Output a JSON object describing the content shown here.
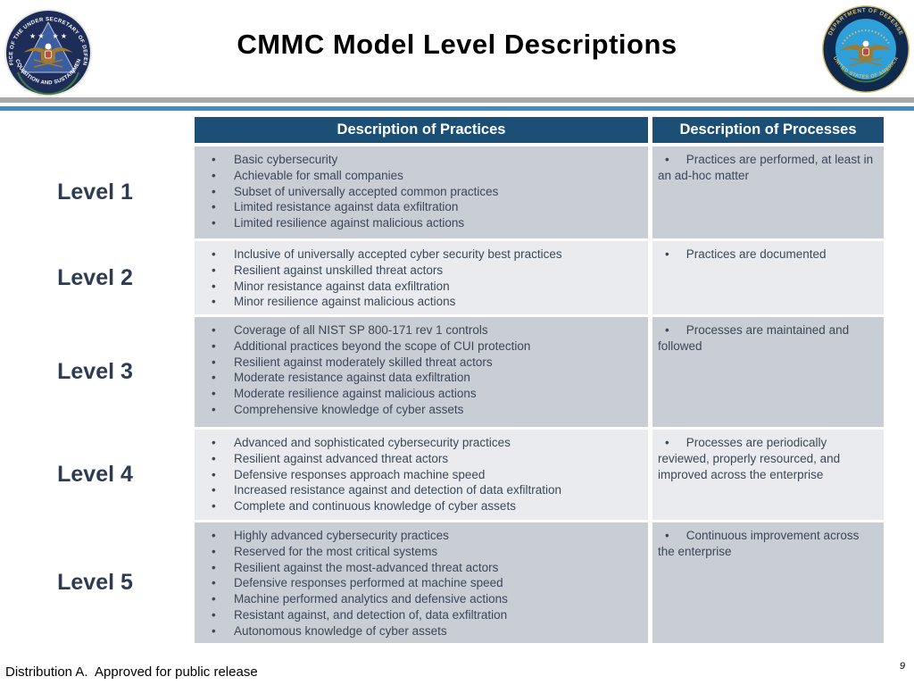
{
  "slide": {
    "title": "CMMC Model Level Descriptions",
    "footer": "Distribution A.  Approved for public release",
    "page_number": "9"
  },
  "seals": {
    "left": {
      "top_text": "OFFICE OF THE UNDER SECRETARY OF DEFENSE",
      "bottom_text": "ACQUISITION AND SUSTAINMENT"
    },
    "right": {
      "top_text": "DEPARTMENT OF DEFENSE",
      "bottom_text": "UNITED STATES OF AMERICA"
    }
  },
  "table": {
    "columns": [
      "Description of Practices",
      "Description of Processes"
    ],
    "rows": [
      {
        "level": "Level 1",
        "practices": [
          "Basic cybersecurity",
          "Achievable for small companies",
          "Subset of universally accepted common practices",
          "Limited resistance against data exfiltration",
          "Limited resilience against malicious actions"
        ],
        "processes": [
          "Practices are performed, at least in an ad-hoc matter"
        ]
      },
      {
        "level": "Level 2",
        "practices": [
          "Inclusive of universally accepted cyber security best practices",
          "Resilient against unskilled threat actors",
          "Minor resistance against data exfiltration",
          "Minor resilience against malicious actions"
        ],
        "processes": [
          "Practices are documented"
        ]
      },
      {
        "level": "Level 3",
        "practices": [
          "Coverage of all NIST SP 800-171 rev 1 controls",
          "Additional practices beyond the scope of CUI protection",
          "Resilient against moderately skilled threat actors",
          "Moderate resistance against data exfiltration",
          "Moderate resilience against malicious actions",
          "Comprehensive knowledge of cyber assets"
        ],
        "processes": [
          "Processes are maintained and followed"
        ]
      },
      {
        "level": "Level 4",
        "practices": [
          "Advanced and sophisticated cybersecurity practices",
          "Resilient against advanced threat actors",
          "Defensive responses approach machine speed",
          "Increased resistance against and detection of data exfiltration",
          "Complete and continuous knowledge of cyber assets"
        ],
        "processes": [
          "Processes are periodically reviewed, properly resourced, and improved across the enterprise"
        ]
      },
      {
        "level": "Level 5",
        "practices": [
          "Highly advanced cybersecurity practices",
          "Reserved for the most critical systems",
          "Resilient against the most-advanced threat actors",
          "Defensive responses performed at machine speed",
          "Machine performed analytics and defensive actions",
          "Resistant against, and detection of, data exfiltration",
          "Autonomous knowledge of cyber assets"
        ],
        "processes": [
          "Continuous improvement across the enterprise"
        ]
      }
    ]
  },
  "colors": {
    "header_blue": "#1c4f76",
    "row_dark": "#c9cdd4",
    "row_light": "#e9ebef",
    "body_text": "#3c4857",
    "rule_blue": "#3e8ec6",
    "rule_gray": "#a9a9a9"
  }
}
